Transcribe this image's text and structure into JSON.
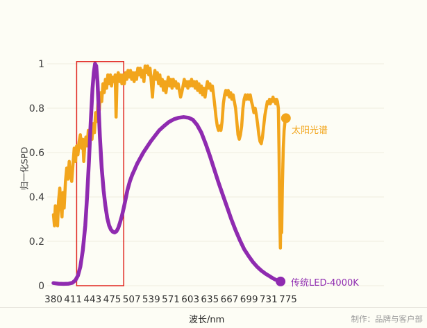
{
  "footer": {
    "credit": "制作：品牌与客户部"
  },
  "chart_data": {
    "type": "line",
    "title": "",
    "xlabel": "波长/nm",
    "ylabel": "归一化SPD",
    "ylim": [
      0,
      1
    ],
    "x_ticks": [
      380,
      411,
      443,
      475,
      507,
      539,
      571,
      603,
      635,
      667,
      699,
      731,
      775
    ],
    "y_ticks": [
      0,
      0.2,
      0.4,
      0.6,
      0.8,
      1
    ],
    "grid": true,
    "legend_position": "end-of-line",
    "background": "#FDFDF5",
    "grid_color": "#EFEDDE",
    "highlight_box": {
      "nm_min": 417,
      "nm_max": 494,
      "v_min": 0,
      "v_max": 1.01,
      "color": "#E0251F"
    },
    "series": [
      {
        "name": "太阳光谱",
        "color": "#F2A51C",
        "end_marker": true,
        "points": [
          [
            380,
            0.32
          ],
          [
            381.5,
            0.27
          ],
          [
            383,
            0.36
          ],
          [
            385,
            0.3
          ],
          [
            386.5,
            0.27
          ],
          [
            388,
            0.38
          ],
          [
            390,
            0.44
          ],
          [
            392,
            0.35
          ],
          [
            393.5,
            0.31
          ],
          [
            395,
            0.42
          ],
          [
            397,
            0.35
          ],
          [
            399,
            0.47
          ],
          [
            401,
            0.53
          ],
          [
            403,
            0.48
          ],
          [
            405,
            0.56
          ],
          [
            407,
            0.5
          ],
          [
            409,
            0.47
          ],
          [
            411,
            0.55
          ],
          [
            413,
            0.62
          ],
          [
            415,
            0.56
          ],
          [
            417,
            0.63
          ],
          [
            419,
            0.59
          ],
          [
            421,
            0.65
          ],
          [
            423,
            0.68
          ],
          [
            425,
            0.62
          ],
          [
            427,
            0.66
          ],
          [
            428.5,
            0.56
          ],
          [
            430,
            0.62
          ],
          [
            432,
            0.67
          ],
          [
            434,
            0.63
          ],
          [
            436,
            0.7
          ],
          [
            438,
            0.65
          ],
          [
            440,
            0.7
          ],
          [
            442,
            0.66
          ],
          [
            444,
            0.73
          ],
          [
            446,
            0.69
          ],
          [
            448,
            0.78
          ],
          [
            450,
            0.74
          ],
          [
            452,
            0.83
          ],
          [
            454,
            0.79
          ],
          [
            456,
            0.87
          ],
          [
            458,
            0.83
          ],
          [
            460,
            0.91
          ],
          [
            462,
            0.87
          ],
          [
            464,
            0.93
          ],
          [
            466,
            0.89
          ],
          [
            468,
            0.95
          ],
          [
            470,
            0.91
          ],
          [
            472,
            0.95
          ],
          [
            474,
            0.9
          ],
          [
            476,
            0.94
          ],
          [
            478,
            0.92
          ],
          [
            480,
            0.95
          ],
          [
            481.5,
            0.76
          ],
          [
            483,
            0.92
          ],
          [
            485,
            0.96
          ],
          [
            487,
            0.92
          ],
          [
            489,
            0.95
          ],
          [
            491,
            0.91
          ],
          [
            493,
            0.95
          ],
          [
            495,
            0.91
          ],
          [
            497,
            0.96
          ],
          [
            499,
            0.93
          ],
          [
            501,
            0.97
          ],
          [
            503,
            0.94
          ],
          [
            505,
            0.97
          ],
          [
            507,
            0.93
          ],
          [
            509,
            0.96
          ],
          [
            511,
            0.92
          ],
          [
            513,
            0.96
          ],
          [
            515,
            0.93
          ],
          [
            517,
            0.98
          ],
          [
            519,
            0.95
          ],
          [
            521,
            0.98
          ],
          [
            523,
            0.94
          ],
          [
            525,
            0.97
          ],
          [
            527,
            0.92
          ],
          [
            529,
            0.99
          ],
          [
            531,
            0.96
          ],
          [
            533,
            0.99
          ],
          [
            535,
            0.95
          ],
          [
            537,
            0.98
          ],
          [
            539,
            0.92
          ],
          [
            541,
            0.85
          ],
          [
            543,
            0.94
          ],
          [
            545,
            0.97
          ],
          [
            547,
            0.93
          ],
          [
            549,
            0.96
          ],
          [
            551,
            0.91
          ],
          [
            553,
            0.95
          ],
          [
            555,
            0.9
          ],
          [
            557,
            0.93
          ],
          [
            559,
            0.88
          ],
          [
            561,
            0.92
          ],
          [
            563,
            0.87
          ],
          [
            565,
            0.91
          ],
          [
            567,
            0.94
          ],
          [
            569,
            0.9
          ],
          [
            571,
            0.93
          ],
          [
            573,
            0.89
          ],
          [
            575,
            0.93
          ],
          [
            577,
            0.9
          ],
          [
            579,
            0.92
          ],
          [
            581,
            0.89
          ],
          [
            583,
            0.91
          ],
          [
            585,
            0.88
          ],
          [
            587,
            0.85
          ],
          [
            589,
            0.87
          ],
          [
            591,
            0.9
          ],
          [
            593,
            0.93
          ],
          [
            595,
            0.9
          ],
          [
            597,
            0.92
          ],
          [
            599,
            0.89
          ],
          [
            601,
            0.92
          ],
          [
            603,
            0.9
          ],
          [
            605,
            0.93
          ],
          [
            607,
            0.9
          ],
          [
            609,
            0.92
          ],
          [
            611,
            0.89
          ],
          [
            613,
            0.92
          ],
          [
            615,
            0.88
          ],
          [
            617,
            0.91
          ],
          [
            619,
            0.87
          ],
          [
            621,
            0.9
          ],
          [
            623,
            0.86
          ],
          [
            625,
            0.89
          ],
          [
            627,
            0.85
          ],
          [
            629,
            0.89
          ],
          [
            631,
            0.92
          ],
          [
            633,
            0.89
          ],
          [
            635,
            0.91
          ],
          [
            637,
            0.88
          ],
          [
            639,
            0.9
          ],
          [
            641,
            0.86
          ],
          [
            643,
            0.81
          ],
          [
            645,
            0.76
          ],
          [
            647,
            0.72
          ],
          [
            649,
            0.7
          ],
          [
            651,
            0.72
          ],
          [
            653,
            0.7
          ],
          [
            655,
            0.74
          ],
          [
            657,
            0.82
          ],
          [
            659,
            0.86
          ],
          [
            661,
            0.88
          ],
          [
            663,
            0.86
          ],
          [
            665,
            0.88
          ],
          [
            667,
            0.85
          ],
          [
            669,
            0.87
          ],
          [
            671,
            0.84
          ],
          [
            673,
            0.86
          ],
          [
            675,
            0.83
          ],
          [
            677,
            0.8
          ],
          [
            679,
            0.74
          ],
          [
            681,
            0.68
          ],
          [
            683,
            0.66
          ],
          [
            685,
            0.68
          ],
          [
            687,
            0.72
          ],
          [
            689,
            0.8
          ],
          [
            691,
            0.84
          ],
          [
            693,
            0.86
          ],
          [
            695,
            0.84
          ],
          [
            697,
            0.86
          ],
          [
            699,
            0.84
          ],
          [
            701,
            0.86
          ],
          [
            703,
            0.83
          ],
          [
            705,
            0.81
          ],
          [
            707,
            0.78
          ],
          [
            709,
            0.8
          ],
          [
            711,
            0.77
          ],
          [
            713,
            0.73
          ],
          [
            715,
            0.68
          ],
          [
            717,
            0.65
          ],
          [
            719,
            0.64
          ],
          [
            721,
            0.67
          ],
          [
            723,
            0.72
          ],
          [
            725,
            0.77
          ],
          [
            727,
            0.8
          ],
          [
            729,
            0.83
          ],
          [
            731,
            0.82
          ],
          [
            733,
            0.84
          ],
          [
            735,
            0.82
          ],
          [
            737,
            0.84
          ],
          [
            739,
            0.83
          ],
          [
            741,
            0.85
          ],
          [
            743,
            0.83
          ],
          [
            745,
            0.84
          ],
          [
            747,
            0.82
          ],
          [
            749,
            0.84
          ],
          [
            751,
            0.83
          ],
          [
            753,
            0.8
          ],
          [
            754.5,
            0.6
          ],
          [
            756,
            0.35
          ],
          [
            757.5,
            0.17
          ],
          [
            759,
            0.4
          ],
          [
            760.5,
            0.24
          ],
          [
            762,
            0.45
          ],
          [
            764,
            0.62
          ],
          [
            766,
            0.7
          ],
          [
            768,
            0.74
          ],
          [
            770,
            0.755
          ]
        ]
      },
      {
        "name": "传统LED-4000K",
        "color": "#8F2BB0",
        "end_marker": true,
        "points": [
          [
            380,
            0.012
          ],
          [
            388,
            0.009
          ],
          [
            396,
            0.008
          ],
          [
            404,
            0.009
          ],
          [
            410,
            0.013
          ],
          [
            415,
            0.025
          ],
          [
            419,
            0.045
          ],
          [
            423,
            0.085
          ],
          [
            427,
            0.16
          ],
          [
            431,
            0.27
          ],
          [
            434,
            0.4
          ],
          [
            437,
            0.56
          ],
          [
            440,
            0.74
          ],
          [
            443,
            0.89
          ],
          [
            445,
            0.96
          ],
          [
            447,
            1.0
          ],
          [
            449,
            0.99
          ],
          [
            451,
            0.92
          ],
          [
            453,
            0.8
          ],
          [
            455,
            0.67
          ],
          [
            458,
            0.53
          ],
          [
            461,
            0.43
          ],
          [
            464,
            0.36
          ],
          [
            467,
            0.305
          ],
          [
            470,
            0.272
          ],
          [
            473,
            0.253
          ],
          [
            476,
            0.243
          ],
          [
            479,
            0.24
          ],
          [
            482,
            0.245
          ],
          [
            485,
            0.26
          ],
          [
            488,
            0.285
          ],
          [
            491,
            0.315
          ],
          [
            494,
            0.35
          ],
          [
            497,
            0.39
          ],
          [
            500,
            0.43
          ],
          [
            504,
            0.47
          ],
          [
            508,
            0.5
          ],
          [
            512,
            0.525
          ],
          [
            516,
            0.55
          ],
          [
            521,
            0.575
          ],
          [
            526,
            0.6
          ],
          [
            532,
            0.625
          ],
          [
            538,
            0.65
          ],
          [
            545,
            0.675
          ],
          [
            552,
            0.7
          ],
          [
            560,
            0.72
          ],
          [
            568,
            0.738
          ],
          [
            576,
            0.75
          ],
          [
            584,
            0.757
          ],
          [
            592,
            0.76
          ],
          [
            600,
            0.757
          ],
          [
            607,
            0.748
          ],
          [
            614,
            0.725
          ],
          [
            621,
            0.69
          ],
          [
            628,
            0.64
          ],
          [
            635,
            0.585
          ],
          [
            642,
            0.525
          ],
          [
            649,
            0.465
          ],
          [
            656,
            0.41
          ],
          [
            663,
            0.355
          ],
          [
            670,
            0.3
          ],
          [
            677,
            0.25
          ],
          [
            684,
            0.205
          ],
          [
            691,
            0.165
          ],
          [
            698,
            0.135
          ],
          [
            705,
            0.108
          ],
          [
            712,
            0.086
          ],
          [
            719,
            0.068
          ],
          [
            726,
            0.054
          ],
          [
            733,
            0.043
          ],
          [
            740,
            0.034
          ],
          [
            747,
            0.027
          ],
          [
            753,
            0.022
          ],
          [
            758,
            0.019
          ]
        ]
      }
    ]
  }
}
